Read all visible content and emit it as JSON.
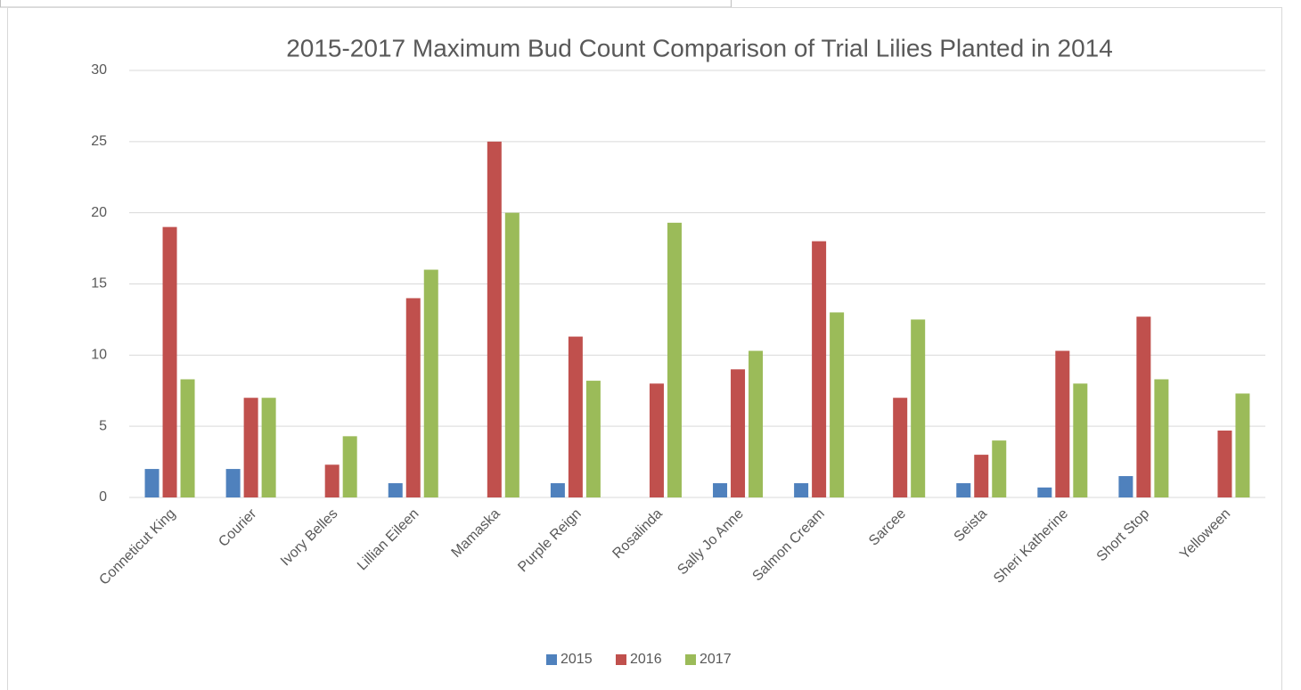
{
  "chart_data": {
    "type": "bar",
    "title": "2015-2017 Maximum Bud Count Comparison of Trial Lilies Planted in 2014",
    "categories": [
      "Conneticut King",
      "Courier",
      "Ivory Belles",
      "Lillian Eileen",
      "Mamaska",
      "Purple Reign",
      "Rosalinda",
      "Sally Jo Anne",
      "Salmon Cream",
      "Sarcee",
      "Seista",
      "Sheri Katherine",
      "Short Stop",
      "Yelloween"
    ],
    "series": [
      {
        "name": "2015",
        "color": "#4f81bd",
        "values": [
          2,
          2,
          0,
          1,
          0,
          1,
          0,
          1,
          1,
          0,
          1,
          0.7,
          1.5,
          0
        ]
      },
      {
        "name": "2016",
        "color": "#c0504d",
        "values": [
          19,
          7,
          2.3,
          14,
          25,
          11.3,
          8,
          9,
          18,
          7,
          3,
          10.3,
          12.7,
          4.7
        ]
      },
      {
        "name": "2017",
        "color": "#9bbb59",
        "values": [
          8.3,
          7,
          4.3,
          16,
          20,
          8.2,
          19.3,
          10.3,
          13,
          12.5,
          4,
          8,
          8.3,
          7.3
        ]
      }
    ],
    "ylim": [
      0,
      30
    ],
    "yticks": [
      0,
      5,
      10,
      15,
      20,
      25,
      30
    ],
    "grid": true,
    "legend": "bottom"
  }
}
